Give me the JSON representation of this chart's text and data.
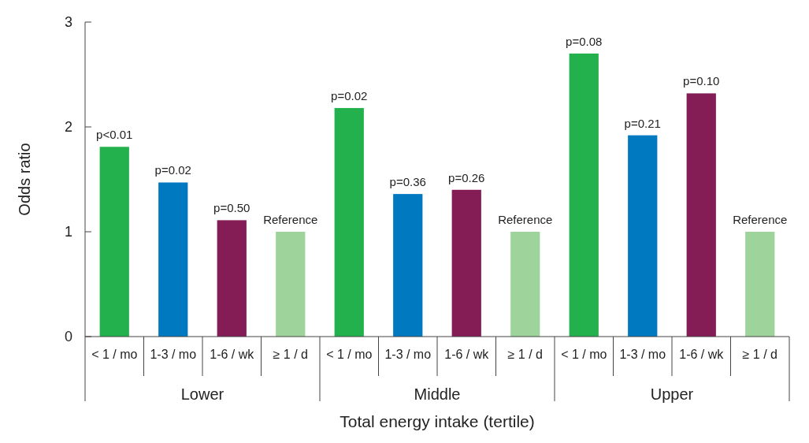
{
  "chart_data": {
    "type": "bar",
    "xlabel": "Total energy intake (tertile)",
    "ylabel": "Odds ratio",
    "categories": [
      "< 1 / mo",
      "1-3 / mo",
      "1-6 / wk",
      "≥ 1 / d",
      "< 1 / mo",
      "1-3 / mo",
      "1-6 / wk",
      "≥ 1 / d",
      "< 1 / mo",
      "1-3 / mo",
      "1-6 / wk",
      "≥ 1 / d"
    ],
    "values": [
      1.81,
      1.47,
      1.11,
      1.0,
      2.18,
      1.36,
      1.4,
      1.0,
      2.7,
      1.92,
      2.32,
      1.0
    ],
    "colors": [
      "#22b14c",
      "#0079c1",
      "#841c56",
      "#9ed49b",
      "#22b14c",
      "#0079c1",
      "#841c56",
      "#9ed49b",
      "#22b14c",
      "#0079c1",
      "#841c56",
      "#9ed49b"
    ],
    "annotations": [
      {
        "text": "p<0.01",
        "y": 1.81
      },
      {
        "text": "p=0.02",
        "y": 1.47
      },
      {
        "text": "p=0.50",
        "y": 1.11
      },
      {
        "text": "Reference",
        "y": 1.0
      },
      {
        "text": "p=0.02",
        "y": 2.18
      },
      {
        "text": "p=0.36",
        "y": 1.36
      },
      {
        "text": "p=0.26",
        "y": 1.4
      },
      {
        "text": "Reference",
        "y": 1.0
      },
      {
        "text": "p=0.08",
        "y": 2.7
      },
      {
        "text": "p=0.21",
        "y": 1.92
      },
      {
        "text": "p=0.10",
        "y": 2.32
      },
      {
        "text": "Reference",
        "y": 1.0
      },
      "Lower",
      "Middle",
      "Upper"
    ],
    "ylim": [
      0,
      3
    ],
    "yticks": [
      0,
      1,
      2,
      3
    ],
    "grid": false
  }
}
